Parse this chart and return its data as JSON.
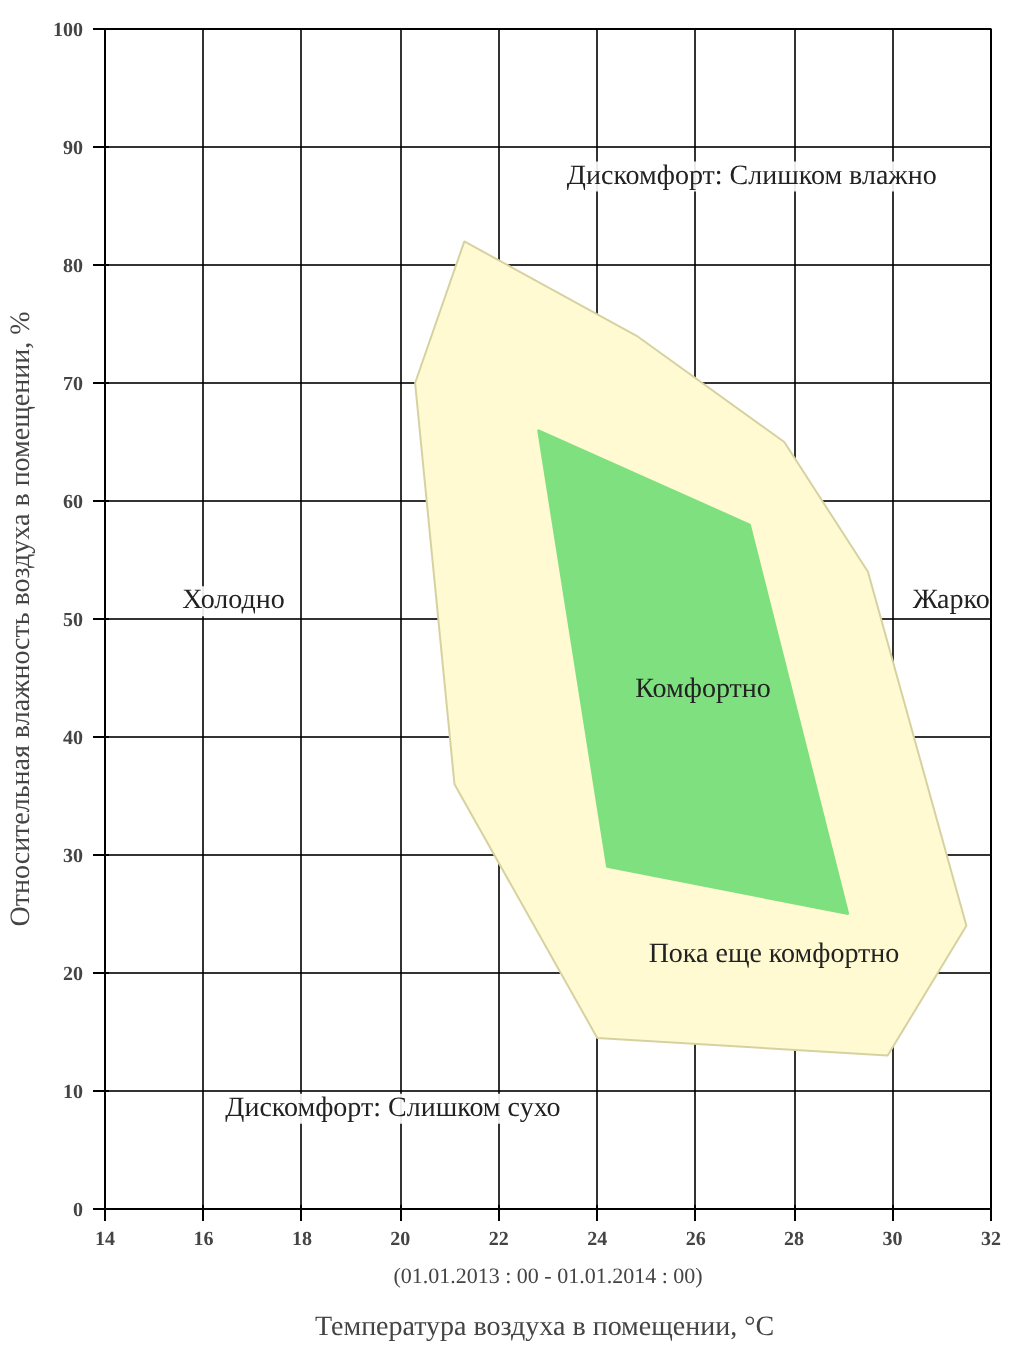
{
  "chart_data": {
    "type": "area",
    "xlabel": "Температура воздуха в помещении,  °C",
    "ylabel": "Относительная влажность воздуха в помещении, %",
    "xlim": [
      14,
      32
    ],
    "xticks": [
      14,
      16,
      18,
      20,
      22,
      24,
      26,
      28,
      30,
      32
    ],
    "ylim": [
      0,
      100
    ],
    "yticks": [
      0,
      10,
      20,
      30,
      40,
      50,
      60,
      70,
      80,
      90,
      100
    ],
    "grid": true,
    "series": [
      {
        "color": "#fffad2",
        "x": [
          21.3,
          24.8,
          27.8,
          29.5,
          31.5,
          29.9,
          24.0,
          21.1,
          20.3
        ],
        "values": [
          82,
          74,
          65,
          54,
          24,
          13,
          14.5,
          36,
          70
        ]
      },
      {
        "color": "#7ee07e",
        "x": [
          22.8,
          27.1,
          29.1,
          24.2
        ],
        "values": [
          66,
          58,
          25,
          29
        ]
      }
    ],
    "annotations": [
      "Дискомфорт: Слишком влажно",
      "Холодно",
      "Жарко",
      "Комфортно",
      "Пока еще комфортно",
      "Дискомфорт: Слишком сухо",
      "(01.01.2013 : 00 - 01.01.2014 : 00)"
    ]
  }
}
